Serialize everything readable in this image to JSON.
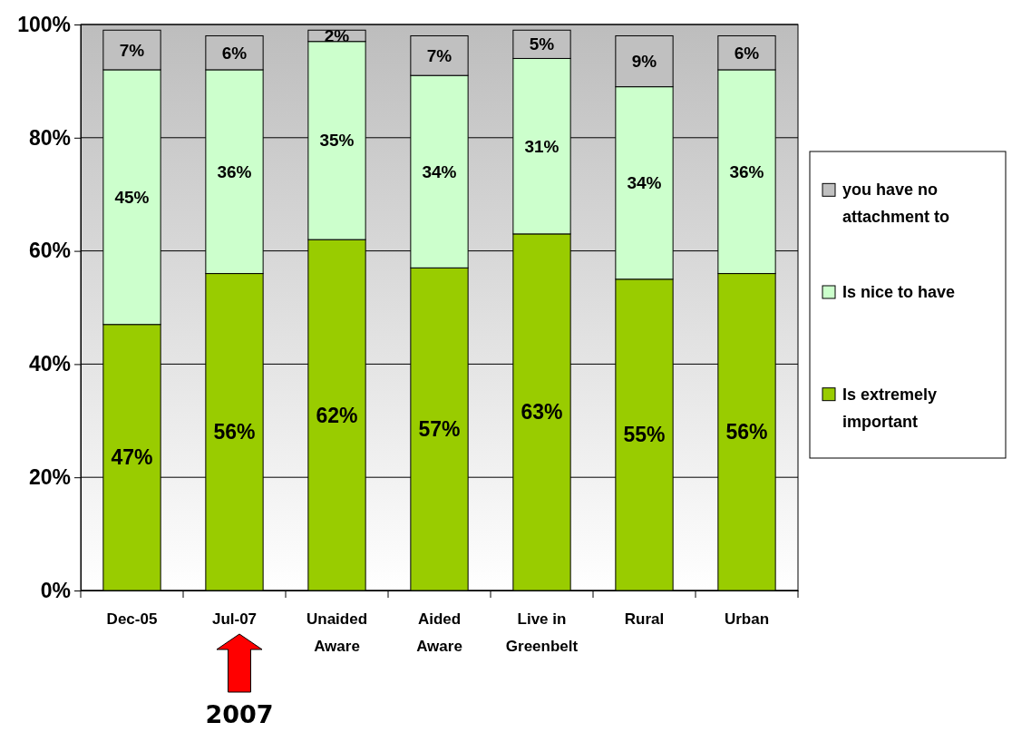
{
  "chart_data": {
    "type": "bar",
    "stacked": true,
    "categories": [
      "Dec-05",
      "Jul-07",
      "Unaided Aware",
      "Aided Aware",
      "Live in Greenbelt",
      "Rural",
      "Urban"
    ],
    "series": [
      {
        "name": "Is extremely important",
        "color": "#99cc00",
        "values": [
          47,
          56,
          62,
          57,
          63,
          55,
          56
        ],
        "value_labels": [
          "47%",
          "56%",
          "62%",
          "57%",
          "63%",
          "55%",
          "56%"
        ]
      },
      {
        "name": "Is nice to have",
        "color": "#ccffcc",
        "values": [
          45,
          36,
          35,
          34,
          31,
          34,
          36
        ],
        "value_labels": [
          "45%",
          "36%",
          "35%",
          "34%",
          "31%",
          "34%",
          "36%"
        ]
      },
      {
        "name": "you have no attachment to",
        "color": "#c0c0c0",
        "values": [
          7,
          6,
          2,
          7,
          5,
          9,
          6
        ],
        "value_labels": [
          "7%",
          "6%",
          "2%",
          "7%",
          "5%",
          "9%",
          "6%"
        ]
      }
    ],
    "ylim": [
      0,
      100
    ],
    "yticks": [
      {
        "value": 0,
        "label": "0%"
      },
      {
        "value": 20,
        "label": "20%"
      },
      {
        "value": 40,
        "label": "40%"
      },
      {
        "value": 60,
        "label": "60%"
      },
      {
        "value": 80,
        "label": "80%"
      },
      {
        "value": 100,
        "label": "100%"
      }
    ],
    "grid": "y",
    "legend": "right",
    "annotations": [
      "2007"
    ]
  }
}
